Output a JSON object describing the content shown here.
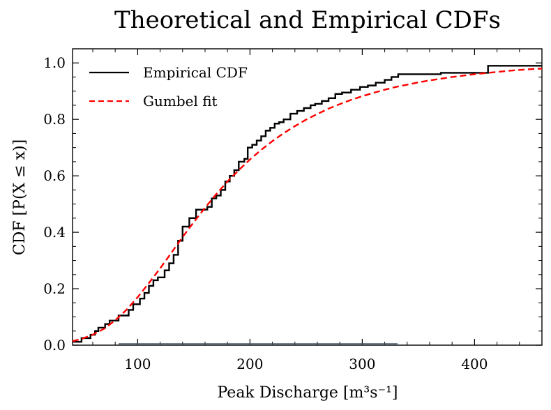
{
  "chart_data": {
    "type": "line",
    "title": "Theoretical and Empirical CDFs",
    "xlabel": "Peak Discharge [m³s⁻¹]",
    "ylabel": "CDF [P(X ≤ x)]",
    "xlim": [
      42,
      460
    ],
    "ylim": [
      0,
      1.05
    ],
    "xticks": [
      100,
      200,
      300,
      400
    ],
    "yticks": [
      0.0,
      0.2,
      0.4,
      0.6,
      0.8,
      1.0
    ],
    "xtick_labels": [
      "100",
      "200",
      "300",
      "400"
    ],
    "ytick_labels": [
      "0.0",
      "0.2",
      "0.4",
      "0.6",
      "0.8",
      "1.0"
    ],
    "grid": false,
    "legend_position": "top-left",
    "series": [
      {
        "name": "Empirical CDF",
        "style": "step",
        "color": "#000000",
        "x": [
          42,
          50,
          54,
          58,
          62,
          65,
          68,
          71,
          75,
          78,
          83,
          87,
          92,
          96,
          102,
          106,
          110,
          114,
          118,
          124,
          128,
          132,
          136,
          140,
          146,
          152,
          158,
          162,
          166,
          170,
          174,
          178,
          182,
          186,
          190,
          195,
          198,
          202,
          206,
          210,
          214,
          218,
          222,
          226,
          230,
          236,
          242,
          248,
          254,
          258,
          264,
          270,
          276,
          282,
          290,
          298,
          305,
          312,
          320,
          326,
          332,
          340,
          370,
          412,
          460
        ],
        "y": [
          0.012,
          0.025,
          0.025,
          0.037,
          0.05,
          0.062,
          0.062,
          0.075,
          0.087,
          0.087,
          0.105,
          0.105,
          0.125,
          0.145,
          0.165,
          0.185,
          0.21,
          0.23,
          0.24,
          0.265,
          0.29,
          0.32,
          0.37,
          0.42,
          0.45,
          0.48,
          0.48,
          0.49,
          0.52,
          0.53,
          0.55,
          0.58,
          0.6,
          0.62,
          0.65,
          0.66,
          0.7,
          0.71,
          0.725,
          0.74,
          0.76,
          0.77,
          0.785,
          0.79,
          0.8,
          0.82,
          0.83,
          0.84,
          0.85,
          0.855,
          0.865,
          0.875,
          0.89,
          0.895,
          0.905,
          0.915,
          0.92,
          0.93,
          0.94,
          0.95,
          0.96,
          0.96,
          0.965,
          0.99,
          0.99
        ]
      },
      {
        "name": "Gumbel fit",
        "style": "dashed",
        "color": "#ff0000",
        "x": [
          42,
          50,
          60,
          70,
          80,
          90,
          100,
          110,
          120,
          130,
          140,
          150,
          160,
          170,
          180,
          190,
          200,
          210,
          220,
          230,
          240,
          250,
          260,
          270,
          280,
          290,
          300,
          310,
          320,
          330,
          340,
          350,
          360,
          370,
          380,
          390,
          400,
          410,
          420,
          430,
          440,
          450,
          460
        ],
        "y": [
          0.014,
          0.022,
          0.037,
          0.058,
          0.088,
          0.125,
          0.17,
          0.22,
          0.272,
          0.327,
          0.383,
          0.436,
          0.487,
          0.535,
          0.58,
          0.62,
          0.658,
          0.692,
          0.723,
          0.751,
          0.776,
          0.799,
          0.819,
          0.838,
          0.854,
          0.869,
          0.882,
          0.894,
          0.905,
          0.915,
          0.923,
          0.931,
          0.938,
          0.944,
          0.95,
          0.955,
          0.96,
          0.964,
          0.968,
          0.972,
          0.975,
          0.978,
          0.98
        ]
      }
    ]
  }
}
